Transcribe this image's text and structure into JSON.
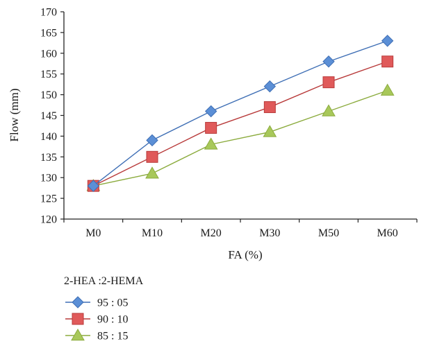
{
  "chart_data": {
    "type": "line",
    "xlabel": "FA (%)",
    "ylabel": "Flow (mm)",
    "categories": [
      "M0",
      "M10",
      "M20",
      "M30",
      "M50",
      "M60"
    ],
    "ylim": [
      120,
      170
    ],
    "yticks": [
      120,
      125,
      130,
      135,
      140,
      145,
      150,
      155,
      160,
      165,
      170
    ],
    "grid": false,
    "legend_position": "bottom-left",
    "legend_title": "2-HEA :2-HEMA",
    "series": [
      {
        "name": "95 : 05",
        "marker": "diamond",
        "color": "#3f6fb5",
        "fill": "#5b8fd6",
        "values": [
          128,
          139,
          146,
          152,
          158,
          163
        ]
      },
      {
        "name": "90 : 10",
        "marker": "square",
        "color": "#b83a3a",
        "fill": "#e05a5a",
        "values": [
          128,
          135,
          142,
          147,
          153,
          158
        ]
      },
      {
        "name": "85 : 15",
        "marker": "triangle",
        "color": "#8bab3d",
        "fill": "#a8c85a",
        "values": [
          128,
          131,
          138,
          141,
          146,
          151
        ]
      }
    ]
  }
}
